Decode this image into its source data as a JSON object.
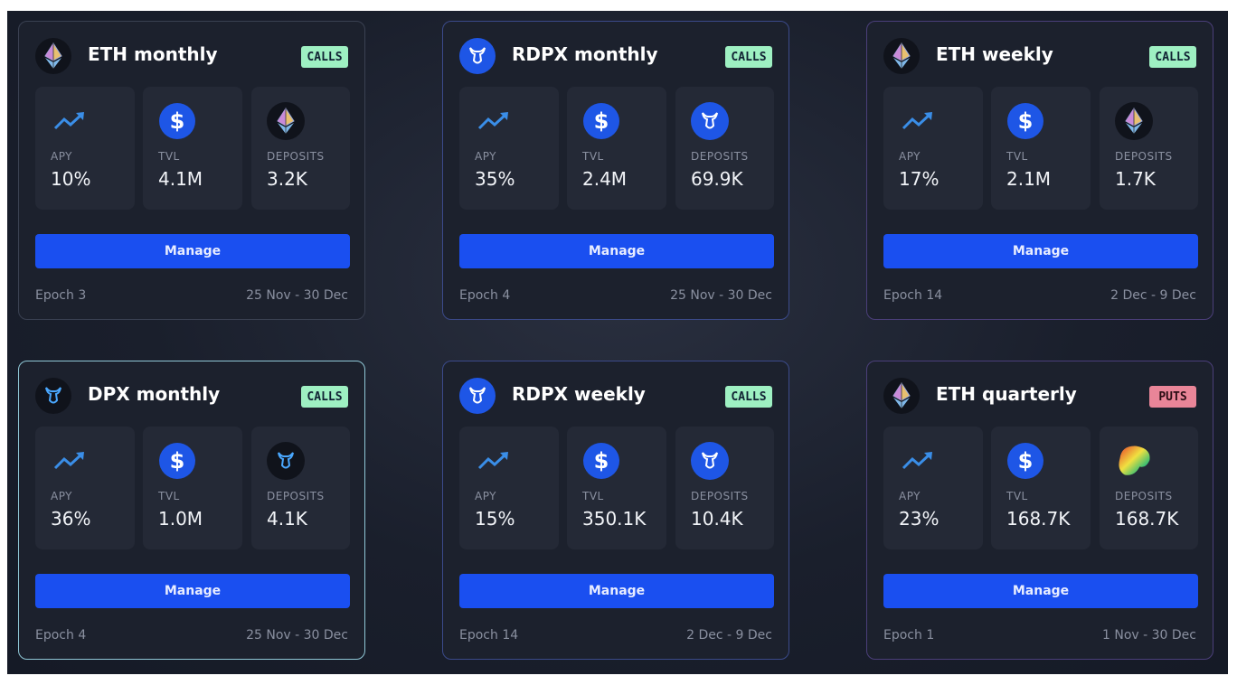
{
  "labels": {
    "apy": "APY",
    "tvl": "TVL",
    "deposits": "DEPOSITS",
    "manage": "Manage"
  },
  "colors": {
    "accent": "#1a4ff0",
    "calls_badge": "#9ef0c2",
    "puts_badge": "#e98598",
    "card_bg": "#1c212d"
  },
  "vaults": [
    {
      "title": "ETH monthly",
      "badge": "CALLS",
      "coin_icon": "eth-icon",
      "deposit_icon": "eth-icon",
      "apy": "10%",
      "tvl": "4.1M",
      "deposits": "3.2K",
      "epoch": "Epoch 3",
      "dates": "25 Nov - 30 Dec"
    },
    {
      "title": "RDPX monthly",
      "badge": "CALLS",
      "coin_icon": "rdpx-icon",
      "deposit_icon": "rdpx-icon",
      "apy": "35%",
      "tvl": "2.4M",
      "deposits": "69.9K",
      "epoch": "Epoch 4",
      "dates": "25 Nov - 30 Dec"
    },
    {
      "title": "ETH weekly",
      "badge": "CALLS",
      "coin_icon": "eth-icon",
      "deposit_icon": "eth-icon",
      "apy": "17%",
      "tvl": "2.1M",
      "deposits": "1.7K",
      "epoch": "Epoch 14",
      "dates": "2 Dec - 9 Dec"
    },
    {
      "title": "DPX monthly",
      "badge": "CALLS",
      "coin_icon": "dpx-icon",
      "deposit_icon": "dpx-icon",
      "apy": "36%",
      "tvl": "1.0M",
      "deposits": "4.1K",
      "epoch": "Epoch 4",
      "dates": "25 Nov - 30 Dec"
    },
    {
      "title": "RDPX weekly",
      "badge": "CALLS",
      "coin_icon": "rdpx-icon",
      "deposit_icon": "rdpx-icon",
      "apy": "15%",
      "tvl": "350.1K",
      "deposits": "10.4K",
      "epoch": "Epoch 14",
      "dates": "2 Dec - 9 Dec"
    },
    {
      "title": "ETH quarterly",
      "badge": "PUTS",
      "coin_icon": "eth-icon",
      "deposit_icon": "curve-icon",
      "apy": "23%",
      "tvl": "168.7K",
      "deposits": "168.7K",
      "epoch": "Epoch 1",
      "dates": "1 Nov - 30 Dec"
    }
  ]
}
